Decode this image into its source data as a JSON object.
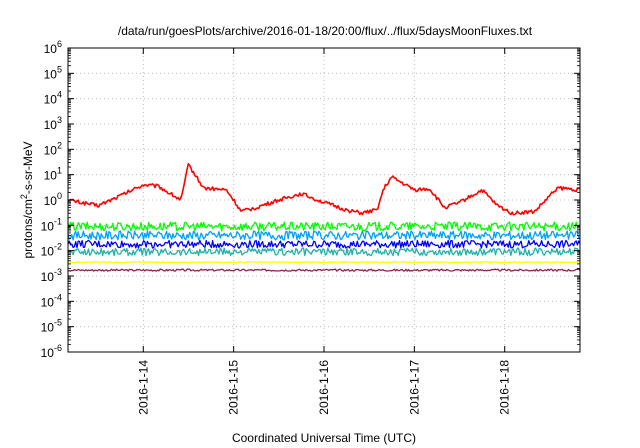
{
  "chart_data": {
    "type": "line",
    "title": "/data/run/goesPlots/archive/2016-01-18/20:00/flux/../flux/5daysMoonFluxes.txt",
    "xlabel": "Coordinated Universal Time (UTC)",
    "ylabel_parts": [
      "protons/cm",
      "2",
      "-s-sr-MeV"
    ],
    "y_scale": "log",
    "ylim": [
      1e-06,
      1000000.0
    ],
    "y_ticks": [
      {
        "base": "10",
        "exp": "6"
      },
      {
        "base": "10",
        "exp": "5"
      },
      {
        "base": "10",
        "exp": "4"
      },
      {
        "base": "10",
        "exp": "3"
      },
      {
        "base": "10",
        "exp": "2"
      },
      {
        "base": "10",
        "exp": "1"
      },
      {
        "base": "10",
        "exp": "0"
      },
      {
        "base": "10",
        "exp": "-1"
      },
      {
        "base": "10",
        "exp": "-2"
      },
      {
        "base": "10",
        "exp": "-3"
      },
      {
        "base": "10",
        "exp": "-4"
      },
      {
        "base": "10",
        "exp": "-5"
      },
      {
        "base": "10",
        "exp": "-6"
      }
    ],
    "x_start": "2016-01-13 04:00",
    "x_end": "2016-01-18 20:00",
    "x_ticks": [
      {
        "label": "2016-1-14",
        "date": "2016-01-14"
      },
      {
        "label": "2016-1-15",
        "date": "2016-01-15"
      },
      {
        "label": "2016-1-16",
        "date": "2016-01-16"
      },
      {
        "label": "2016-1-17",
        "date": "2016-01-17"
      },
      {
        "label": "2016-1-18",
        "date": "2016-01-18"
      }
    ],
    "grid": true,
    "legend": "none",
    "series": [
      {
        "color": "#ff0000",
        "x": [
          "2016-01-13 04:00",
          "2016-01-13 12:00",
          "2016-01-13 18:00",
          "2016-01-14 00:00",
          "2016-01-14 04:00",
          "2016-01-14 08:00",
          "2016-01-14 10:00",
          "2016-01-14 12:00",
          "2016-01-14 16:00",
          "2016-01-14 22:00",
          "2016-01-15 00:00",
          "2016-01-15 02:00",
          "2016-01-15 06:00",
          "2016-01-15 12:00",
          "2016-01-15 18:00",
          "2016-01-16 00:00",
          "2016-01-16 06:00",
          "2016-01-16 10:00",
          "2016-01-16 14:00",
          "2016-01-16 16:00",
          "2016-01-16 18:00",
          "2016-01-17 00:00",
          "2016-01-17 04:00",
          "2016-01-17 08:00",
          "2016-01-17 12:00",
          "2016-01-17 18:00",
          "2016-01-17 22:00",
          "2016-01-18 02:00",
          "2016-01-18 08:00",
          "2016-01-18 14:00",
          "2016-01-18 20:00"
        ],
        "y": [
          1.0,
          0.6,
          1.5,
          4.0,
          3.5,
          1.5,
          1.0,
          25,
          3.0,
          2.5,
          1.0,
          0.35,
          0.5,
          1.0,
          1.8,
          0.8,
          0.4,
          0.3,
          0.4,
          3.0,
          8.0,
          2.5,
          2.8,
          0.5,
          0.8,
          2.5,
          0.6,
          0.3,
          0.35,
          3.0,
          2.5
        ]
      },
      {
        "color": "#00ff00",
        "x": [
          "2016-01-13 04:00",
          "2016-01-18 20:00"
        ],
        "y": [
          0.09,
          0.09
        ]
      },
      {
        "color": "#00a0ff",
        "x": [
          "2016-01-13 04:00",
          "2016-01-18 20:00"
        ],
        "y": [
          0.04,
          0.04
        ]
      },
      {
        "color": "#0000ff",
        "x": [
          "2016-01-13 04:00",
          "2016-01-18 20:00"
        ],
        "y": [
          0.018,
          0.018
        ]
      },
      {
        "color": "#20b2aa",
        "x": [
          "2016-01-13 04:00",
          "2016-01-18 20:00"
        ],
        "y": [
          0.009,
          0.009
        ]
      },
      {
        "color": "#ffff00",
        "x": [
          "2016-01-13 04:00",
          "2016-01-18 20:00"
        ],
        "y": [
          0.0035,
          0.0035
        ]
      },
      {
        "color": "#8b2252",
        "x": [
          "2016-01-13 04:00",
          "2016-01-18 20:00"
        ],
        "y": [
          0.0017,
          0.0017
        ]
      }
    ]
  }
}
